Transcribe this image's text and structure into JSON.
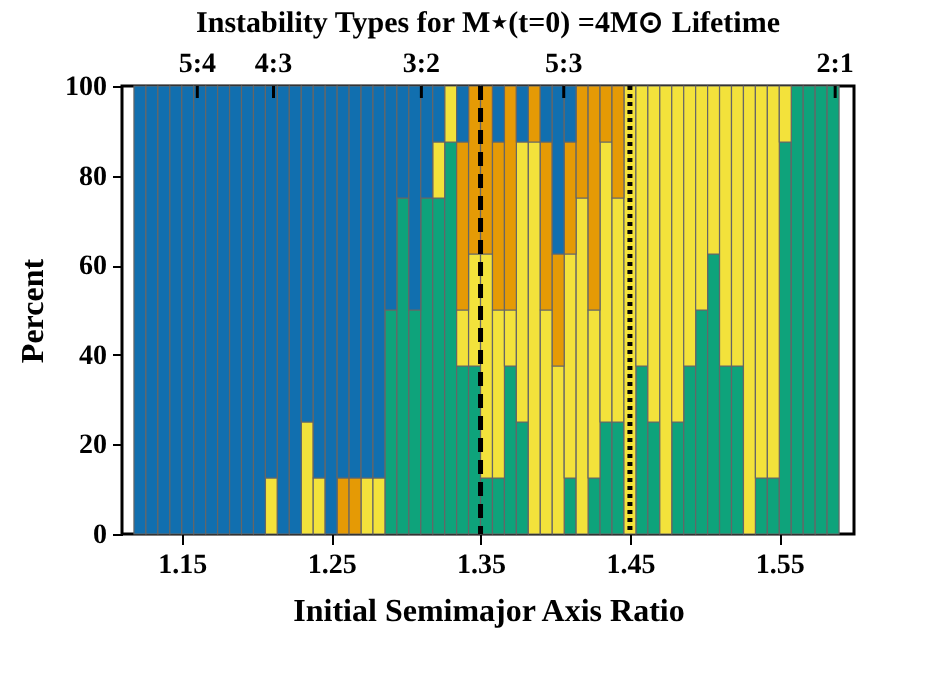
{
  "chart_data": {
    "type": "bar",
    "stacked": true,
    "title": "Instability Types for M⋆(t=0) =4M⊙ Lifetime",
    "xlabel": "Initial Semimajor Axis Ratio",
    "ylabel": "Percent",
    "x": [
      1.122,
      1.13,
      1.138,
      1.146,
      1.154,
      1.162,
      1.17,
      1.178,
      1.186,
      1.194,
      1.202,
      1.21,
      1.218,
      1.226,
      1.234,
      1.242,
      1.25,
      1.258,
      1.266,
      1.274,
      1.282,
      1.29,
      1.298,
      1.306,
      1.314,
      1.322,
      1.33,
      1.338,
      1.346,
      1.354,
      1.362,
      1.37,
      1.378,
      1.386,
      1.394,
      1.402,
      1.41,
      1.418,
      1.426,
      1.434,
      1.442,
      1.45,
      1.458,
      1.466,
      1.474,
      1.482,
      1.49,
      1.498,
      1.506,
      1.514,
      1.522,
      1.53,
      1.538,
      1.546,
      1.554,
      1.562,
      1.57,
      1.578,
      1.586
    ],
    "series": [
      {
        "color": "#0ea37b",
        "values": [
          0,
          0,
          0,
          0,
          0,
          0,
          0,
          0,
          0,
          0,
          0,
          0,
          0,
          0,
          0,
          0,
          0,
          0,
          0,
          0,
          0,
          50,
          75,
          50,
          75,
          75,
          87.5,
          37.5,
          37.5,
          12.5,
          12.5,
          37.5,
          25,
          0,
          0,
          0,
          12.5,
          0,
          12.5,
          25,
          25,
          0,
          37.5,
          25,
          0,
          25,
          37.5,
          50,
          62.5,
          37.5,
          37.5,
          0,
          12.5,
          12.5,
          87.5,
          100,
          100,
          100,
          100
        ]
      },
      {
        "color": "#f3e23b",
        "values": [
          0,
          0,
          0,
          0,
          0,
          0,
          0,
          0,
          0,
          0,
          0,
          12.5,
          0,
          0,
          25,
          12.5,
          0,
          0,
          0,
          12.5,
          12.5,
          0,
          0,
          0,
          0,
          12.5,
          12.5,
          12.5,
          25,
          50,
          37.5,
          12.5,
          62.5,
          87.5,
          50,
          37.5,
          50,
          75,
          37.5,
          62.5,
          50,
          100,
          62.5,
          75,
          100,
          75,
          62.5,
          50,
          37.5,
          62.5,
          62.5,
          100,
          87.5,
          87.5,
          12.5,
          0,
          0,
          0,
          0
        ]
      },
      {
        "color": "#e59a05",
        "values": [
          0,
          0,
          0,
          0,
          0,
          0,
          0,
          0,
          0,
          0,
          0,
          0,
          0,
          0,
          0,
          0,
          0,
          12.5,
          12.5,
          0,
          0,
          0,
          0,
          0,
          0,
          0,
          0,
          37.5,
          37.5,
          37.5,
          37.5,
          50,
          0,
          12.5,
          37.5,
          25,
          25,
          25,
          50,
          12.5,
          25,
          0,
          0,
          0,
          0,
          0,
          0,
          0,
          0,
          0,
          0,
          0,
          0,
          0,
          0,
          0,
          0,
          0,
          0
        ]
      },
      {
        "color": "#116faf",
        "values": [
          100,
          100,
          100,
          100,
          100,
          100,
          100,
          100,
          100,
          100,
          100,
          87.5,
          100,
          100,
          75,
          87.5,
          100,
          87.5,
          87.5,
          87.5,
          87.5,
          50,
          25,
          50,
          25,
          12.5,
          0,
          12.5,
          0,
          0,
          12.5,
          0,
          12.5,
          0,
          12.5,
          37.5,
          12.5,
          0,
          0,
          0,
          0,
          0,
          0,
          0,
          0,
          0,
          0,
          0,
          0,
          0,
          0,
          0,
          0,
          0,
          0,
          0,
          0,
          0,
          0
        ]
      }
    ],
    "xlim": [
      1.11,
      1.6
    ],
    "xticks": [
      1.15,
      1.25,
      1.35,
      1.45,
      1.55
    ],
    "ylim": [
      0,
      100
    ],
    "yticks": [
      0,
      20,
      40,
      60,
      80,
      100
    ],
    "annotations": [
      {
        "text": "5:4",
        "x": 1.1604
      },
      {
        "text": "4:3",
        "x": 1.2114
      },
      {
        "text": "3:2",
        "x": 1.3104
      },
      {
        "text": "5:3",
        "x": 1.4057
      },
      {
        "text": "2:1",
        "x": 1.5874
      }
    ],
    "ref_lines": [
      {
        "axis": "x",
        "value": 1.35,
        "color": "#000000",
        "line_style": "dashed"
      },
      {
        "axis": "x",
        "value": 1.45,
        "color": "#000000",
        "line_style": "dotted"
      }
    ],
    "grid": false,
    "legend": false
  }
}
